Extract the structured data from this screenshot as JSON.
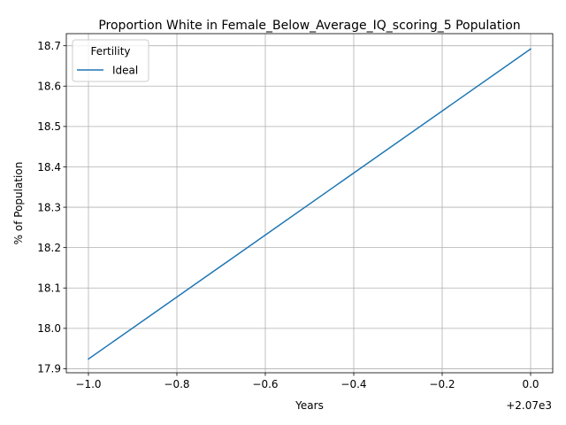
{
  "chart_data": {
    "type": "line",
    "title": "Proportion White in Female_Below_Average_IQ_scoring_5 Population",
    "xlabel": "Years",
    "ylabel": "% of Population",
    "x_offset_label": "+2.07e3",
    "xlim": [
      -1.05,
      0.05
    ],
    "ylim": [
      17.89,
      18.73
    ],
    "x_ticks": [
      {
        "value": -1.0,
        "label": "−1.0"
      },
      {
        "value": -0.8,
        "label": "−0.8"
      },
      {
        "value": -0.6,
        "label": "−0.6"
      },
      {
        "value": -0.4,
        "label": "−0.4"
      },
      {
        "value": -0.2,
        "label": "−0.2"
      },
      {
        "value": 0.0,
        "label": "0.0"
      }
    ],
    "y_ticks": [
      {
        "value": 17.9,
        "label": "17.9"
      },
      {
        "value": 18.0,
        "label": "18.0"
      },
      {
        "value": 18.1,
        "label": "18.1"
      },
      {
        "value": 18.2,
        "label": "18.2"
      },
      {
        "value": 18.3,
        "label": "18.3"
      },
      {
        "value": 18.4,
        "label": "18.4"
      },
      {
        "value": 18.5,
        "label": "18.5"
      },
      {
        "value": 18.6,
        "label": "18.6"
      },
      {
        "value": 18.7,
        "label": "18.7"
      }
    ],
    "grid": true,
    "legend": {
      "title": "Fertility",
      "placement": "upper-left"
    },
    "series": [
      {
        "name": "Ideal",
        "color": "#1f77b4",
        "x": [
          -1.0,
          0.0
        ],
        "y": [
          17.924,
          18.692
        ]
      }
    ]
  }
}
